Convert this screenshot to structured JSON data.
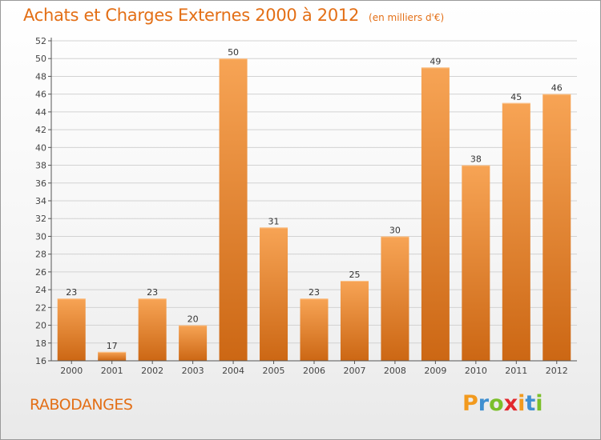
{
  "header": {
    "title": "Achats et Charges Externes 2000 à 2012",
    "unit": "(en milliers d'€)"
  },
  "footer": {
    "place": "RABODANGES",
    "brand_letters": [
      "P",
      "r",
      "o",
      "x",
      "i",
      "t",
      "i"
    ],
    "brand_colors": [
      "#f29a1e",
      "#3f8fd0",
      "#7bbf2a",
      "#e2282e",
      "#f29a1e",
      "#3f8fd0",
      "#7bbf2a"
    ]
  },
  "chart_data": {
    "type": "bar",
    "title": "Achats et Charges Externes 2000 à 2012",
    "subtitle": "(en milliers d'€)",
    "categories": [
      "2000",
      "2001",
      "2002",
      "2003",
      "2004",
      "2005",
      "2006",
      "2007",
      "2008",
      "2009",
      "2010",
      "2011",
      "2012"
    ],
    "values": [
      23,
      17,
      23,
      20,
      50,
      31,
      23,
      25,
      30,
      49,
      38,
      45,
      46
    ],
    "ylim": [
      16,
      52
    ],
    "yticks": [
      16,
      18,
      20,
      22,
      24,
      26,
      28,
      30,
      32,
      34,
      36,
      38,
      40,
      42,
      44,
      46,
      48,
      50,
      52
    ],
    "grid": true,
    "colors": {
      "bar_top": "#f7a455",
      "bar_bottom": "#cc6714",
      "label": "#333333",
      "axis": "#555555"
    }
  }
}
